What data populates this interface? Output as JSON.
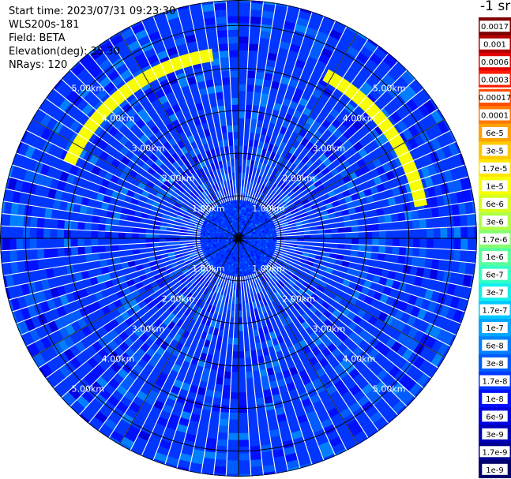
{
  "info": {
    "start_time": "Start time: 2023/07/31 09:23:30",
    "instrument": "WLS200s-181",
    "field": "Field: BETA",
    "elevation": "Elevation(deg): 35.30",
    "nrays": "NRays: 120"
  },
  "colorbar": {
    "unit_label": "-1 sr",
    "labels": [
      "0.0017",
      "0.001",
      "0.0006",
      "0.0003",
      "0.00017",
      "0.0001",
      "6e-5",
      "3e-5",
      "1.7e-5",
      "1e-5",
      "6e-6",
      "3e-6",
      "1.7e-6",
      "1e-6",
      "6e-7",
      "3e-7",
      "1.7e-7",
      "1e-7",
      "6e-8",
      "3e-8",
      "1.7e-8",
      "1e-8",
      "6e-9",
      "3e-9",
      "1.7e-9",
      "1e-9"
    ],
    "colors": [
      "#7f0000",
      "#b20000",
      "#e00000",
      "#ff1a00",
      "#ff4d00",
      "#ff7a00",
      "#ffa200",
      "#ffc800",
      "#ffe600",
      "#f7ff00",
      "#d6ff1f",
      "#b0ff47",
      "#86ff70",
      "#5cff9a",
      "#36ffc4",
      "#12f0ec",
      "#00c8ff",
      "#00a6ff",
      "#0080ff",
      "#005cff",
      "#0036ff",
      "#0010ff",
      "#0000e0",
      "#0000b8",
      "#000090",
      "#00006a"
    ]
  },
  "chart_data": {
    "type": "heatmap",
    "projection": "polar-ppi",
    "field": "BETA",
    "nrays": 120,
    "range_rings_km": [
      1.0,
      2.0,
      3.0,
      4.0,
      5.0
    ],
    "ring_labels": [
      "1.00km",
      "2.00km",
      "3.00km",
      "4.00km",
      "5.00km"
    ],
    "max_range_km": 5.6,
    "spoke_angles_deg": [
      0,
      30,
      60,
      90,
      120,
      150,
      180,
      210,
      240,
      270,
      300,
      330
    ],
    "background_value": 1.7e-08,
    "features": [
      {
        "range_km": [
          4.2,
          4.5
        ],
        "azimuth_deg": [
          294,
          352
        ],
        "value": 1e-05
      },
      {
        "range_km": [
          4.2,
          4.5
        ],
        "azimuth_deg": [
          28,
          80
        ],
        "value": 1e-05
      }
    ]
  }
}
